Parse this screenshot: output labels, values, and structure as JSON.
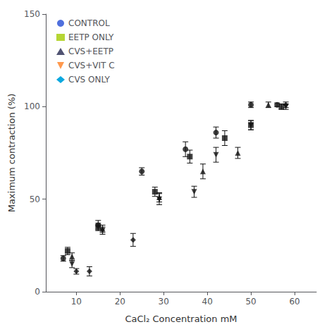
{
  "chart_data": {
    "type": "scatter",
    "xlabel": "CaCl₂ Concentration mM",
    "ylabel": "Maximum contraction (%)",
    "xlim": [
      3,
      65
    ],
    "ylim": [
      0,
      150
    ],
    "xticks": [
      10,
      20,
      30,
      40,
      50,
      60
    ],
    "yticks": [
      0,
      50,
      100,
      150
    ],
    "grid": false,
    "legend": "upper left",
    "series": [
      {
        "name": "CONTROL",
        "color": "#111111",
        "marker": "circle",
        "x": [
          7,
          15,
          25,
          35,
          42,
          50,
          56
        ],
        "values": [
          18,
          36,
          65,
          77,
          86,
          101,
          101
        ],
        "yerr": [
          1.5,
          2.5,
          2.0,
          4.0,
          3.0,
          1.5,
          1.0
        ]
      },
      {
        "name": "EETP ONLY",
        "color": "#111111",
        "marker": "square",
        "x": [
          8,
          15,
          28,
          36,
          44,
          50,
          57
        ],
        "values": [
          22,
          35,
          54,
          73,
          83,
          90,
          100
        ],
        "yerr": [
          2.0,
          2.0,
          2.5,
          3.5,
          4.0,
          2.5,
          1.5
        ]
      },
      {
        "name": "CVS+EETP",
        "color": "#111111",
        "marker": "triangle_up",
        "x": [
          9,
          16,
          29,
          39,
          47,
          54
        ],
        "values": [
          19,
          34,
          51,
          65,
          75,
          101
        ],
        "yerr": [
          2.0,
          2.0,
          2.5,
          4.0,
          3.0,
          1.5
        ]
      },
      {
        "name": "CVS+VIT C",
        "color": "#111111",
        "marker": "triangle_down",
        "x": [
          9,
          16,
          29,
          37,
          42,
          50,
          58
        ],
        "values": [
          15,
          33,
          50,
          54,
          74,
          90,
          100
        ],
        "yerr": [
          2.0,
          2.0,
          3.0,
          3.0,
          4.0,
          2.5,
          1.5
        ]
      },
      {
        "name": "CVS ONLY",
        "color": "#111111",
        "marker": "diamond",
        "x": [
          10,
          13,
          23,
          58
        ],
        "values": [
          11,
          11,
          28,
          101
        ],
        "yerr": [
          1.5,
          2.5,
          3.5,
          1.5
        ]
      }
    ]
  }
}
